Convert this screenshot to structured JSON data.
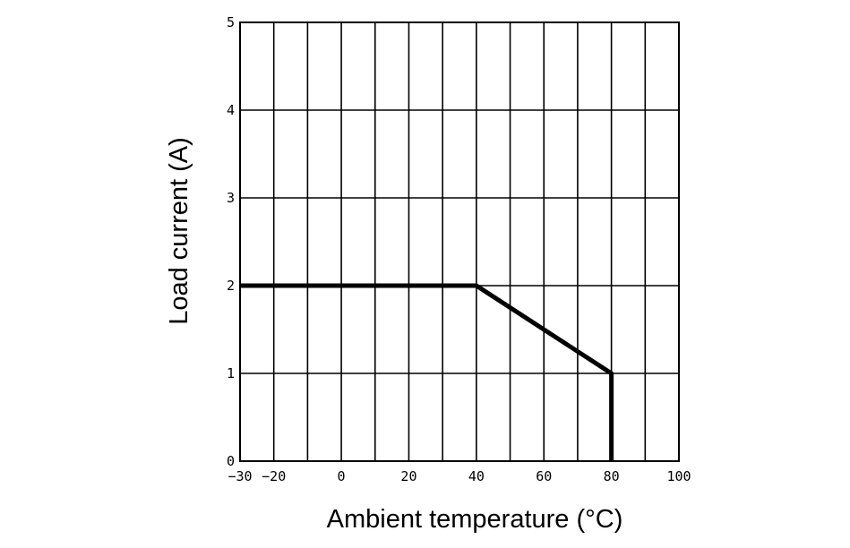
{
  "chart_data": {
    "type": "line",
    "title": "",
    "xlabel": "Ambient temperature (°C)",
    "ylabel": "Load current (A)",
    "xlim": [
      -30,
      100
    ],
    "ylim": [
      0,
      5
    ],
    "grid": true,
    "x_ticks": [
      -30,
      -20,
      0,
      20,
      40,
      60,
      80,
      100
    ],
    "x_tick_labels": [
      "−30",
      "−20",
      "0",
      "20",
      "40",
      "60",
      "80",
      "100"
    ],
    "y_ticks": [
      0,
      1,
      2,
      3,
      4,
      5
    ],
    "y_tick_labels": [
      "0",
      "1",
      "2",
      "3",
      "4",
      "5"
    ],
    "series": [
      {
        "x": [
          -30,
          40,
          80,
          80
        ],
        "y": [
          2,
          2,
          1,
          0
        ]
      }
    ]
  }
}
